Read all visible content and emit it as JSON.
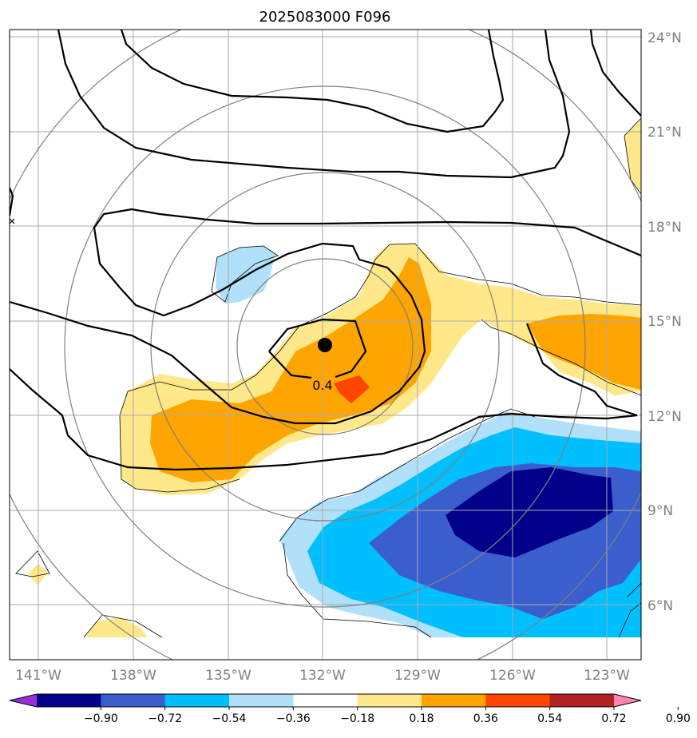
{
  "title": "2025083000 F096",
  "lat_labels": [
    "24°N",
    "21°N",
    "18°N",
    "15°N",
    "12°N",
    "9°N",
    "6°N"
  ],
  "lon_labels": [
    "141°W",
    "138°W",
    "135°W",
    "132°W",
    "129°W",
    "126°W",
    "123°W"
  ],
  "colorbar": {
    "levels": [
      "−0.90",
      "−0.72",
      "−0.54",
      "−0.36",
      "−0.18",
      "0.18",
      "0.36",
      "0.54",
      "0.72",
      "0.90"
    ],
    "colors": [
      "#9b30d9",
      "#00008b",
      "#3a5fcd",
      "#00bfff",
      "#b0e0fa",
      "#ffffff",
      "#ffe88a",
      "#ffa500",
      "#ff4500",
      "#b22222",
      "#ff85b0"
    ]
  },
  "contour_label": "0.4",
  "fill_colors": {
    "light_yellow": "#ffe88a",
    "orange": "#ffa500",
    "red_orange": "#ff4500",
    "light_blue": "#b0e0fa",
    "cyan": "#00bfff",
    "royal_blue": "#3a5fcd",
    "navy": "#00008b"
  },
  "storm_center": {
    "lon": -132,
    "lat": 14.25
  }
}
